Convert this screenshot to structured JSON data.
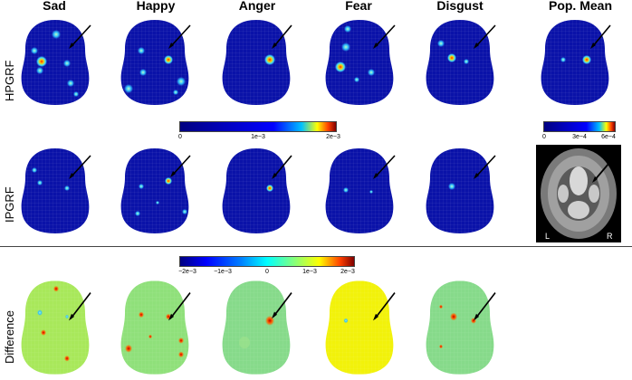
{
  "columns": [
    "Sad",
    "Happy",
    "Anger",
    "Fear",
    "Disgust",
    "Pop. Mean"
  ],
  "rows": [
    "HPGRF",
    "IPGRF",
    "Difference"
  ],
  "colorbar_main": {
    "ticks": [
      "0",
      "1e−3",
      "2e−3"
    ]
  },
  "colorbar_mean": {
    "ticks": [
      "0",
      "3e−4",
      "6e−4"
    ]
  },
  "colorbar_diff": {
    "ticks": [
      "−2e−3",
      "−1e−3",
      "0",
      "1e−3",
      "2e−3"
    ]
  },
  "anatomy": {
    "left_label": "L",
    "right_label": "R"
  },
  "colors": {
    "bg_blue": "#0a12a8",
    "diff_green": "#8fe07a",
    "diff_yellow": "#f2f20a",
    "anatomy_gray": "#7a7a7a"
  }
}
